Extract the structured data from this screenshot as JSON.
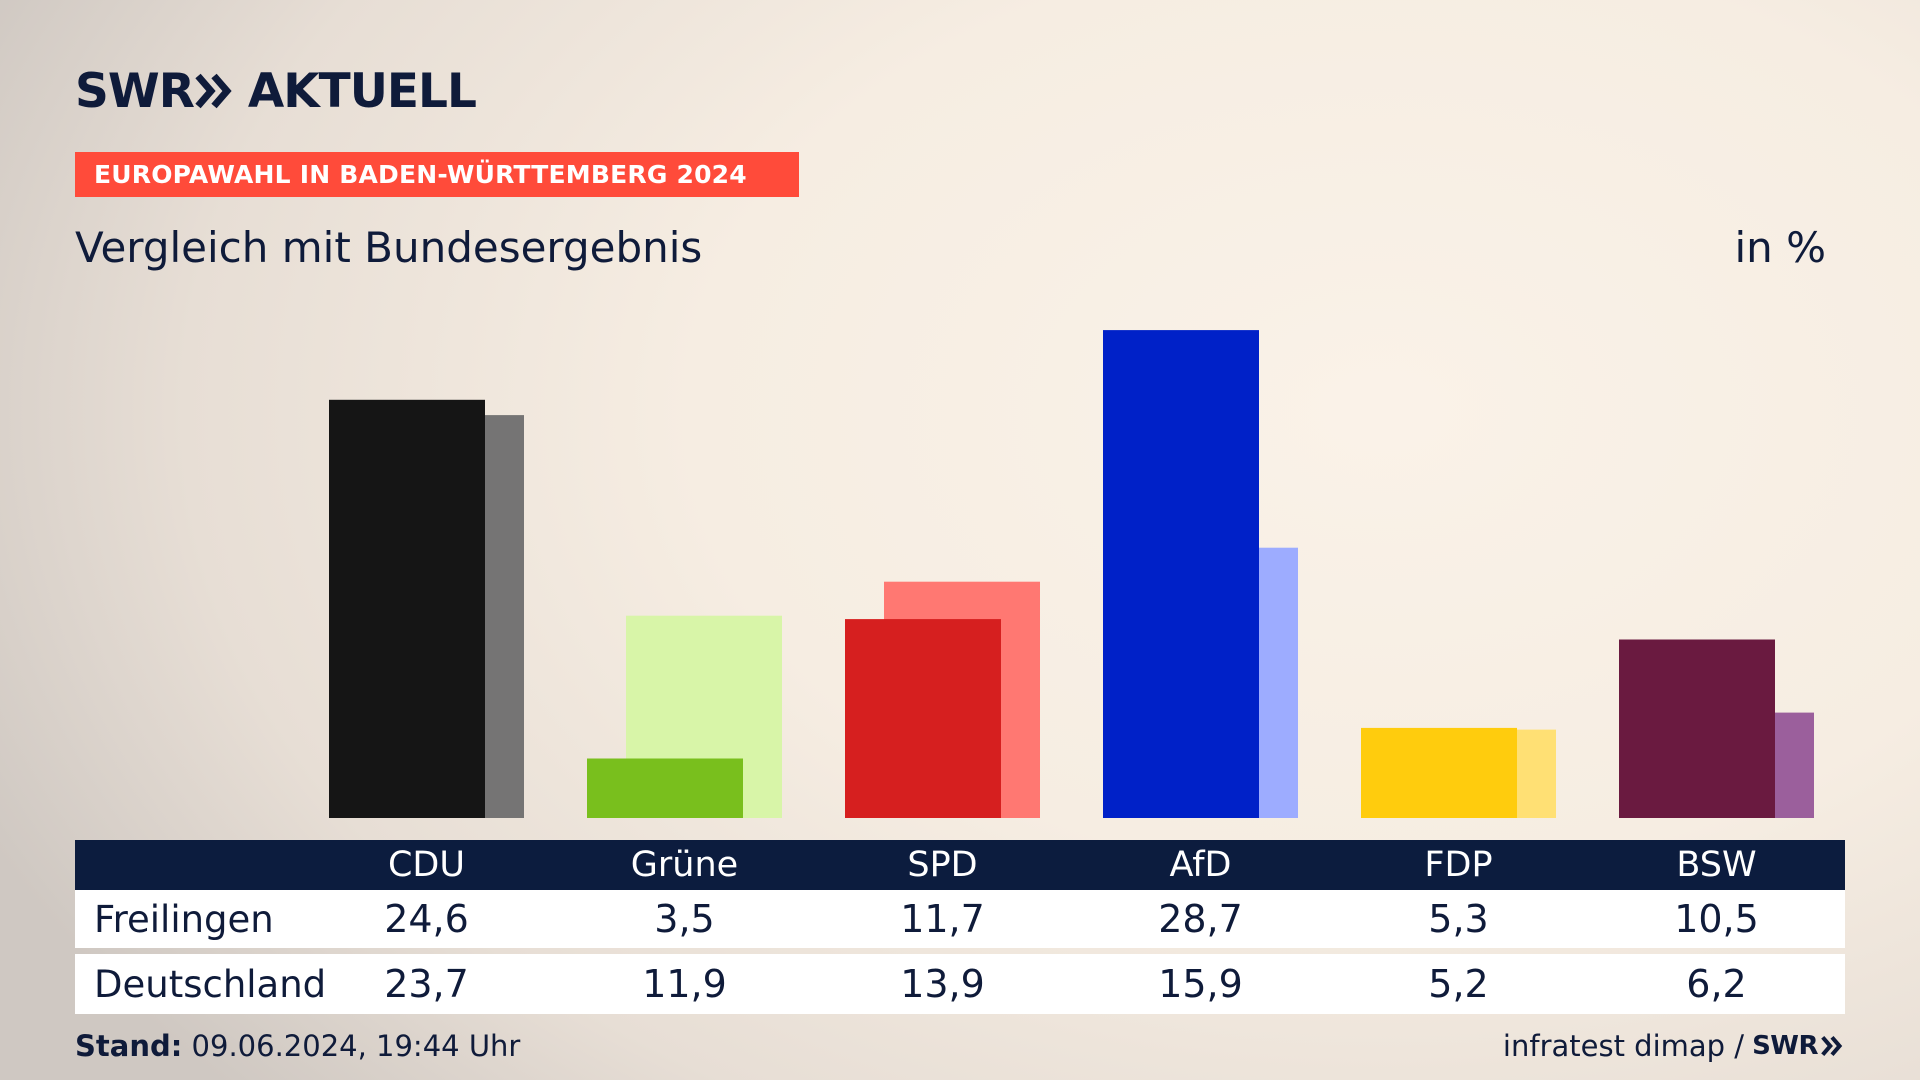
{
  "header": {
    "logo_left": "SWR",
    "logo_right": "AKTUELL",
    "logo_icon": "double-chevron-icon",
    "banner": "EUROPAWAHL IN BADEN-WÜRTTEMBERG 2024",
    "subtitle": "Vergleich mit Bundesergebnis",
    "unit": "in %"
  },
  "chart_data": {
    "type": "bar",
    "categories": [
      "CDU",
      "Grüne",
      "SPD",
      "AfD",
      "FDP",
      "BSW"
    ],
    "series": [
      {
        "name": "Freilingen",
        "values": [
          24.6,
          3.5,
          11.7,
          28.7,
          5.3,
          10.5
        ],
        "colors": [
          "#151515",
          "#79bf1d",
          "#d61f1f",
          "#0021c8",
          "#ffcc0d",
          "#6a1a40"
        ]
      },
      {
        "name": "Deutschland",
        "values": [
          23.7,
          11.9,
          13.9,
          15.9,
          5.2,
          6.2
        ],
        "colors": [
          "#757474",
          "#d8f5a8",
          "#ff7872",
          "#9dacff",
          "#ffe074",
          "#9b5f9c"
        ]
      }
    ],
    "ylim": [
      0,
      30
    ],
    "legend": "table-below",
    "grid": false
  },
  "table": {
    "rows": [
      {
        "label": "Freilingen",
        "values": [
          "24,6",
          "3,5",
          "11,7",
          "28,7",
          "5,3",
          "10,5"
        ]
      },
      {
        "label": "Deutschland",
        "values": [
          "23,7",
          "11,9",
          "13,9",
          "15,9",
          "5,2",
          "6,2"
        ]
      }
    ]
  },
  "footer": {
    "stand_label": "Stand:",
    "stand_value": "09.06.2024, 19:44 Uhr",
    "source": "infratest dimap /",
    "source_logo": "SWR"
  }
}
